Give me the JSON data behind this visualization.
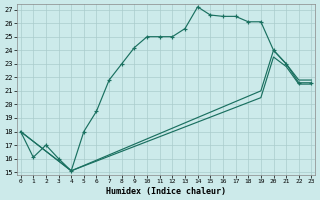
{
  "xlabel": "Humidex (Indice chaleur)",
  "bg_color": "#cceaea",
  "grid_color": "#aacccc",
  "line_color": "#1a7060",
  "xlim_min": -0.3,
  "xlim_max": 23.3,
  "ylim_min": 14.8,
  "ylim_max": 27.4,
  "yticks": [
    15,
    16,
    17,
    18,
    19,
    20,
    21,
    22,
    23,
    24,
    25,
    26,
    27
  ],
  "xticks": [
    0,
    1,
    2,
    3,
    4,
    5,
    6,
    7,
    8,
    9,
    10,
    11,
    12,
    13,
    14,
    15,
    16,
    17,
    18,
    19,
    20,
    21,
    22,
    23
  ],
  "line1_x": [
    0,
    1,
    2,
    3,
    4,
    5,
    6,
    7,
    8,
    9,
    10,
    11,
    12,
    13,
    14,
    15,
    16,
    17,
    18,
    19,
    20,
    21,
    22,
    23
  ],
  "line1_y": [
    18.0,
    16.1,
    17.0,
    16.0,
    15.1,
    18.0,
    19.5,
    21.8,
    23.0,
    24.2,
    25.0,
    25.0,
    25.0,
    25.6,
    27.2,
    26.6,
    26.5,
    26.5,
    26.1,
    26.1,
    24.0,
    23.0,
    21.6,
    21.6
  ],
  "line2_x": [
    0,
    4,
    19,
    20,
    21,
    22,
    23
  ],
  "line2_y": [
    18.0,
    15.1,
    21.0,
    24.0,
    23.0,
    21.8,
    21.8
  ],
  "line3_x": [
    0,
    4,
    19,
    20,
    21,
    22,
    23
  ],
  "line3_y": [
    18.0,
    15.1,
    20.5,
    23.5,
    22.8,
    21.5,
    21.5
  ],
  "marker_size": 3.2,
  "lw": 0.85
}
